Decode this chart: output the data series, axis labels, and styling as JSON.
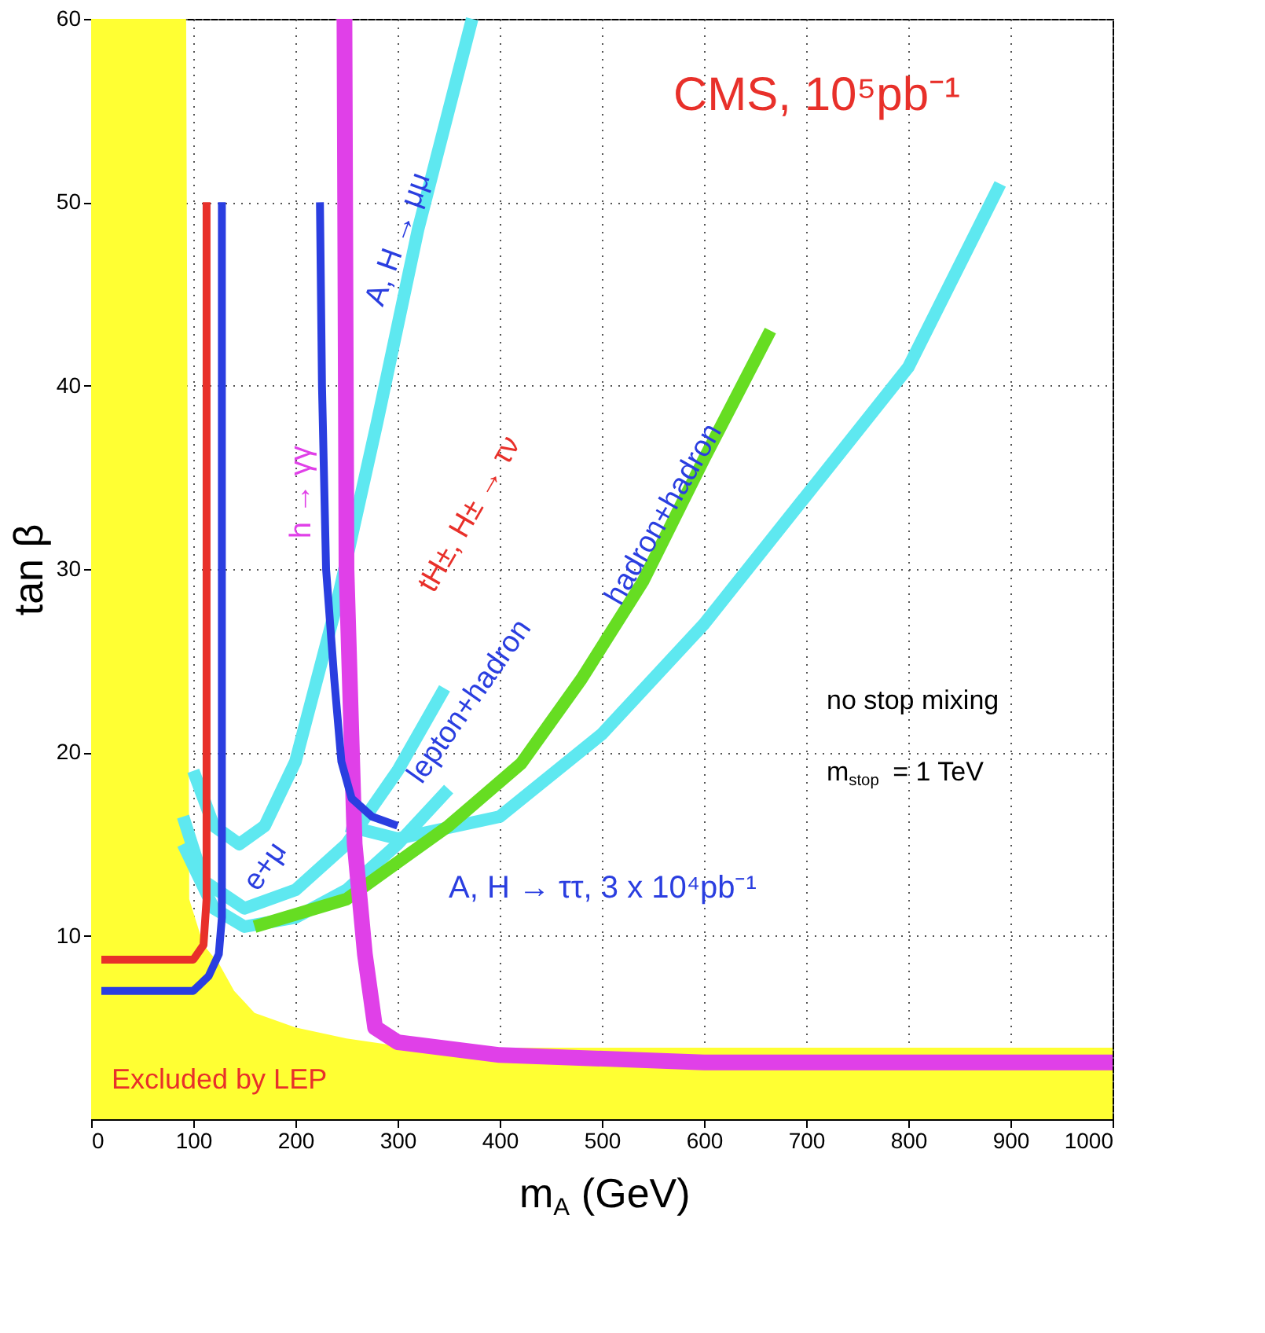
{
  "chart_data": {
    "type": "line",
    "xlabel": "m$_{A}$ (GeV)",
    "ylabel": "tan β",
    "xlim": [
      0,
      1000
    ],
    "ylim": [
      0,
      60
    ],
    "xticks": [
      0,
      100,
      200,
      300,
      400,
      500,
      600,
      700,
      800,
      900,
      1000
    ],
    "yticks": [
      10,
      20,
      30,
      40,
      50,
      60
    ],
    "grid": true,
    "line_style": "solid",
    "marker": "none",
    "series": [
      {
        "type": "area",
        "color": "#ffff33",
        "x": [
          0,
          93,
          96,
          110,
          125,
          140,
          160,
          200,
          250,
          300,
          400,
          600,
          1000
        ],
        "values": [
          60,
          60,
          12,
          9.5,
          8.5,
          7,
          5.8,
          5,
          4.4,
          4,
          3.9,
          3.9,
          3.9
        ]
      },
      {
        "color": "#5ee8f0",
        "x": [
          100,
          120,
          145,
          170,
          200,
          240,
          280,
          320,
          373
        ],
        "values": [
          19,
          16,
          15,
          16,
          19.5,
          28,
          38,
          48.5,
          60
        ]
      },
      {
        "color": "#5ee8f0",
        "x": [
          90,
          110,
          150,
          200,
          250,
          300,
          346
        ],
        "values": [
          16.5,
          13,
          11.5,
          12.5,
          15,
          19,
          23.5
        ]
      },
      {
        "color": "#5ee8f0",
        "x": [
          90,
          120,
          150,
          200,
          250,
          300,
          350
        ],
        "values": [
          15,
          11.5,
          10.5,
          11,
          12.5,
          15,
          18
        ]
      },
      {
        "color": "#5ee8f0",
        "x": [
          250,
          300,
          400,
          500,
          600,
          700,
          800,
          890
        ],
        "values": [
          16,
          15.3,
          16.5,
          21,
          27,
          34,
          41,
          51
        ]
      },
      {
        "color": "#66dd22",
        "x": [
          160,
          250,
          300,
          350,
          421,
          480,
          540,
          600,
          665
        ],
        "values": [
          10.5,
          12,
          14,
          16,
          19.4,
          24,
          29.3,
          36,
          43
        ]
      },
      {
        "color": "#e040e8",
        "x": [
          248,
          250,
          258,
          268,
          278,
          300,
          400,
          600,
          1000
        ],
        "values": [
          60,
          30,
          15,
          9,
          5,
          4.2,
          3.5,
          3.1,
          3.1
        ]
      },
      {
        "color": "#e8302a",
        "x": [
          10,
          100,
          110,
          113,
          113
        ],
        "values": [
          8.7,
          8.7,
          9.5,
          12,
          50
        ]
      },
      {
        "color": "#2a3ee0",
        "x": [
          10,
          100,
          115,
          125,
          128,
          128
        ],
        "values": [
          7,
          7,
          7.8,
          9,
          11,
          50
        ]
      },
      {
        "color": "#2a3ee0",
        "x": [
          224,
          226,
          230,
          238,
          245,
          255,
          275,
          300
        ],
        "values": [
          50,
          40,
          30,
          24,
          19.5,
          17.5,
          16.5,
          16
        ]
      }
    ],
    "annotations": [
      "CMS, 10⁵pb⁻¹",
      "no stop mixing",
      "m$_{stop}$ = 1 TeV",
      "A, H → μμ",
      "h → γγ",
      "tH±, H± → τν",
      "lepton+hadron",
      "hadron+hadron",
      "e+μ",
      "A, H → ττ, 3 x 10⁴pb⁻¹",
      "Excluded by LEP"
    ]
  }
}
